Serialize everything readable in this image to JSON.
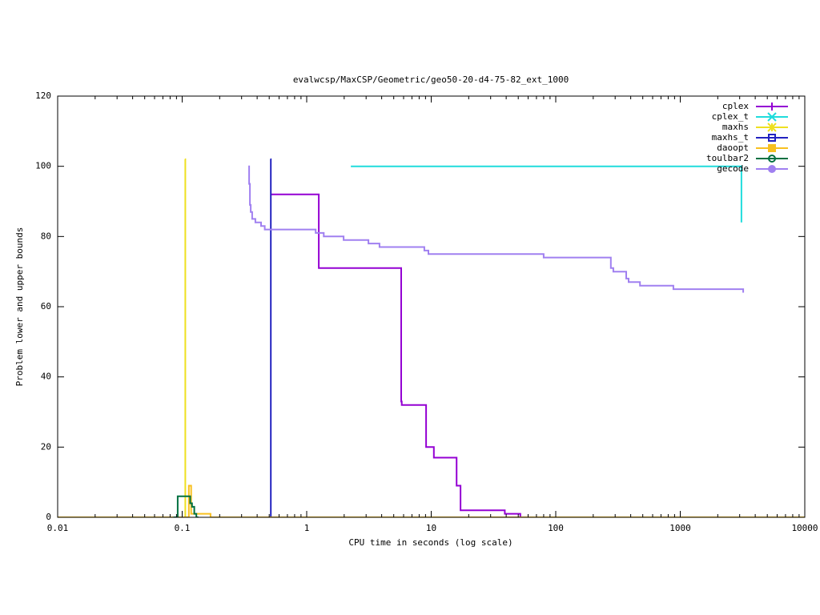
{
  "chart_data": {
    "type": "line",
    "title": "evalwcsp/MaxCSP/Geometric/geo50-20-d4-75-82_ext_1000",
    "xlabel": "CPU time in seconds (log scale)",
    "ylabel": "Problem lower and upper bounds",
    "xlog": true,
    "step": true,
    "legend": "top-right",
    "xlim": [
      0.01,
      10000
    ],
    "xticks": [
      0.01,
      0.1,
      1,
      10,
      100,
      1000,
      10000
    ],
    "ylim": [
      0,
      120
    ],
    "yticks": [
      0,
      20,
      40,
      60,
      80,
      100,
      120
    ],
    "series": [
      {
        "name": "cplex",
        "color": "#9400d3",
        "x": [
          0.51,
          1.25,
          5.74,
          5.8,
          9.1,
          10.5,
          16,
          17.2,
          39,
          52
        ],
        "values": [
          92,
          71,
          33,
          32,
          20,
          17,
          9,
          2,
          1,
          0
        ]
      },
      {
        "name": "cplex_t",
        "color": "#20dcdc",
        "x": [
          2.26,
          3100
        ],
        "values": [
          100,
          84
        ]
      },
      {
        "name": "maxhs",
        "color": "#eee020",
        "x": [
          0.105,
          0.106
        ],
        "values": [
          102,
          0
        ]
      },
      {
        "name": "maxhs_t",
        "color": "#2222c0",
        "x": [
          0.51,
          0.515
        ],
        "values": [
          102,
          0
        ]
      },
      {
        "name": "daoopt",
        "color": "#f8c020",
        "x": [
          0.01,
          0.113,
          0.118,
          0.169,
          10000
        ],
        "values": [
          0,
          9,
          1,
          0,
          0
        ]
      },
      {
        "name": "toulbar2",
        "color": "#007040",
        "x": [
          0.085,
          0.092,
          0.116,
          0.12,
          0.125,
          0.13,
          0.135
        ],
        "values": [
          0,
          6,
          4,
          3,
          1,
          0,
          0
        ]
      },
      {
        "name": "gecode",
        "color": "#a080f0",
        "x": [
          0.34,
          0.345,
          0.35,
          0.355,
          0.365,
          0.387,
          0.43,
          0.46,
          1.18,
          1.37,
          1.98,
          3.13,
          3.84,
          8.8,
          9.5,
          80,
          277,
          290,
          368,
          385,
          475,
          880,
          3200
        ],
        "values": [
          100,
          95,
          89,
          87,
          85,
          84,
          83,
          82,
          81,
          80,
          79,
          78,
          77,
          76,
          75,
          74,
          71,
          70,
          68,
          67,
          66,
          65,
          64
        ]
      }
    ]
  }
}
